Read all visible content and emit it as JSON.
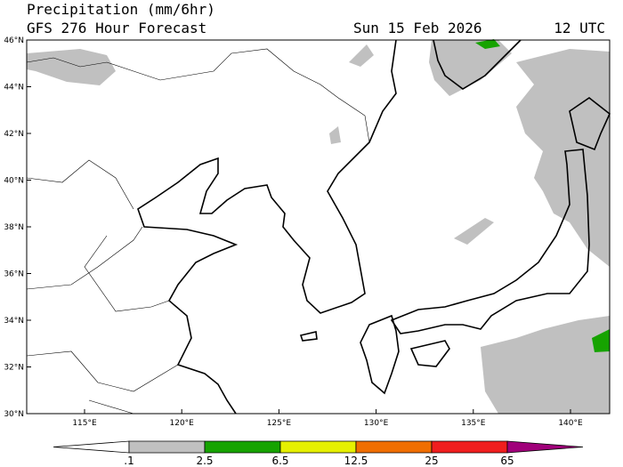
{
  "header": {
    "title": "Precipitation (mm/6hr)",
    "subtitle": "GFS 276 Hour Forecast",
    "date": "Sun 15 Feb 2026",
    "time": "12 UTC"
  },
  "map": {
    "lat_labels": [
      "30°N",
      "32°N",
      "34°N",
      "36°N",
      "38°N",
      "40°N",
      "42°N",
      "44°N",
      "46°N"
    ],
    "lon_labels": [
      "115°E",
      "120°E",
      "125°E",
      "130°E",
      "135°E",
      "140°E"
    ]
  },
  "colorbar": {
    "labels": [
      ".1",
      "2.5",
      "6.5",
      "12.5",
      "25",
      "65"
    ],
    "colors": [
      "#ffffff",
      "#c0c0c0",
      "#16a300",
      "#e6f000",
      "#f06e00",
      "#f01e1e",
      "#a0007a"
    ]
  }
}
